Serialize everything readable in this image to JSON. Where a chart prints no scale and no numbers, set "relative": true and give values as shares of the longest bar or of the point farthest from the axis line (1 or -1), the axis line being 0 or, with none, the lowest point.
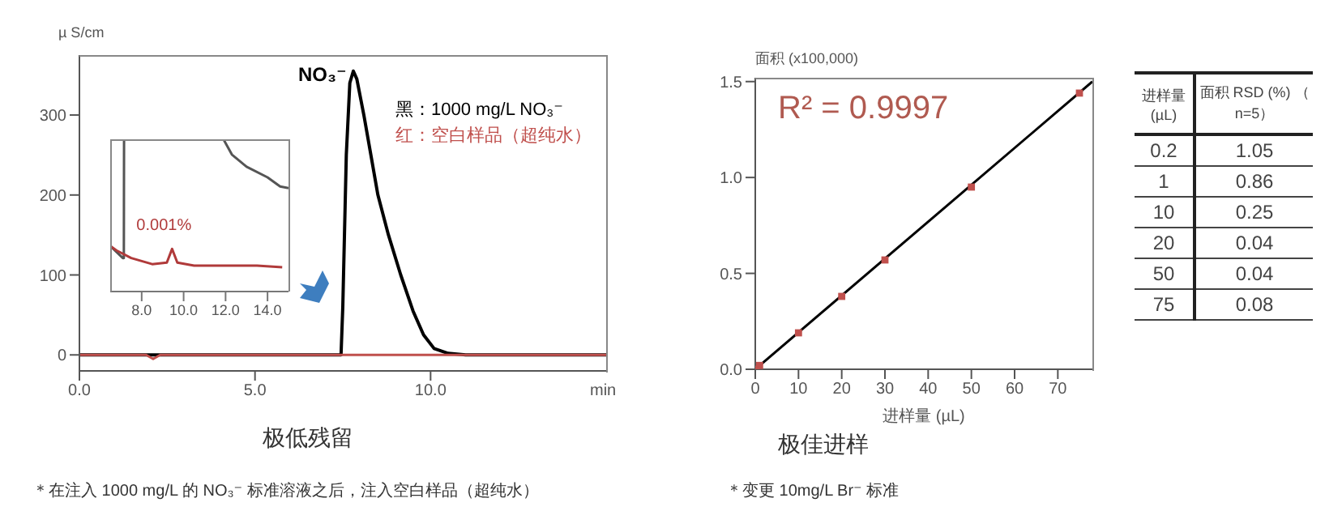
{
  "chart_data": [
    {
      "type": "line",
      "title": "极低残留",
      "xlabel": "min",
      "ylabel": "µ S/cm",
      "xlim": [
        0,
        15
      ],
      "ylim": [
        -20,
        375
      ],
      "xticks": [
        {
          "value": 0,
          "label": "0.0"
        },
        {
          "value": 5,
          "label": "5.0"
        },
        {
          "value": 10,
          "label": "10.0"
        }
      ],
      "yticks": [
        0,
        100,
        200,
        300
      ],
      "legend": "top right",
      "series": [
        {
          "name": "黑：1000 mg/L NO₃⁻",
          "color": "#000000",
          "x": [
            0,
            7.45,
            7.5,
            7.6,
            7.7,
            7.8,
            7.9,
            8.1,
            8.3,
            8.5,
            8.8,
            9.15,
            9.5,
            9.8,
            10.1,
            10.5,
            11,
            15
          ],
          "values": [
            0,
            0,
            60,
            250,
            340,
            355,
            345,
            300,
            250,
            200,
            150,
            100,
            55,
            25,
            8,
            2,
            0,
            0
          ]
        },
        {
          "name": "红：空白样品（超纯水）",
          "color": "#c0504d",
          "x": [
            0,
            1.9,
            2.1,
            2.3,
            15
          ],
          "values": [
            0,
            0,
            -5,
            0,
            0
          ]
        }
      ],
      "annotations": [
        {
          "text": "NO₃⁻",
          "x": 7.8,
          "y": 355
        },
        "＊在注入 1000 mg/L 的 NO₃⁻ 标准溶液之后，注入空白样品（超纯水）"
      ]
    },
    {
      "type": "line",
      "relative": true,
      "xlim": [
        6.5,
        15
      ],
      "xticks": [
        {
          "value": 8,
          "label": "8.0"
        },
        {
          "value": 10,
          "label": "10.0"
        },
        {
          "value": 12,
          "label": "12.0"
        },
        {
          "value": 14,
          "label": "14.0"
        }
      ],
      "tick_labels": "x",
      "series": [
        {
          "color": "#555555",
          "x": [
            6.5,
            7.1,
            7.15,
            7.16,
            11.9,
            12.3,
            13,
            14,
            14.6,
            15
          ],
          "values": [
            0.3,
            0.22,
            0.22,
            1.0,
            1.0,
            0.9,
            0.82,
            0.75,
            0.69,
            0.68
          ]
        },
        {
          "color": "#b03a3a",
          "x": [
            6.5,
            6.8,
            7.5,
            8.5,
            9.2,
            9.45,
            9.7,
            10.5,
            12,
            13.5,
            14.7
          ],
          "values": [
            0.3,
            0.27,
            0.22,
            0.18,
            0.19,
            0.28,
            0.19,
            0.17,
            0.17,
            0.17,
            0.16
          ]
        }
      ],
      "annotations": [
        {
          "text": "0.001%",
          "x": 9.45,
          "y": 0.28
        }
      ]
    },
    {
      "type": "scatter",
      "title": "极佳进样",
      "xlabel": "进样量 (µL)",
      "ylabel": "面积 (x100,000)",
      "xlim": [
        0,
        78
      ],
      "ylim": [
        0,
        1.52
      ],
      "xticks": [
        0,
        10,
        20,
        30,
        40,
        50,
        60,
        70
      ],
      "yticks": [
        {
          "value": 0,
          "label": "0.0"
        },
        {
          "value": 0.5,
          "label": "0.5"
        },
        {
          "value": 1,
          "label": "1.0"
        },
        {
          "value": 1.5,
          "label": "1.5"
        }
      ],
      "series": [
        {
          "type": "line",
          "color": "#000000",
          "x": [
            0,
            78
          ],
          "values": [
            0,
            1.5
          ]
        },
        {
          "type": "scatter",
          "color": "#c0504d",
          "marker": "square",
          "x": [
            0.2,
            1,
            10,
            20,
            30,
            50,
            75
          ],
          "values": [
            0.0,
            0.02,
            0.19,
            0.38,
            0.57,
            0.95,
            1.44
          ]
        }
      ],
      "annotations": [
        "R² = 0.9997",
        "＊变更 10mg/L Br⁻ 标准"
      ]
    },
    {
      "type": "other",
      "xlabel": "进样量 (µL)",
      "ylabel": "面积 RSD (%) （ n=5）",
      "categories": [
        "0.2",
        "1",
        "10",
        "20",
        "50",
        "75"
      ],
      "values": [
        1.05,
        0.86,
        0.25,
        0.04,
        0.04,
        0.08
      ],
      "data_labels": true
    }
  ]
}
